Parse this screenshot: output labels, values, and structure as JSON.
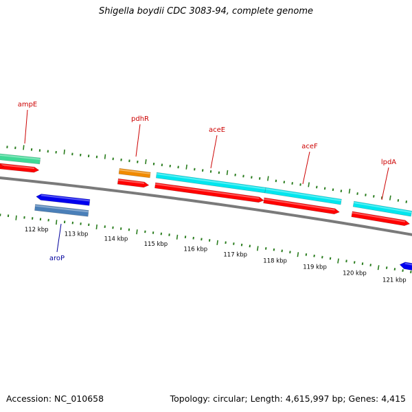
{
  "title": "Shigella boydii CDC 3083-94, complete genome",
  "footer": {
    "accession": "Accession: NC_010658",
    "summary": "Topology: circular; Length: 4,615,997 bp; Genes: 4,415"
  },
  "colors": {
    "backbone": "#7a7a7a",
    "tick": "#2a7d1e",
    "label_forward": "#cc0000",
    "label_reverse": "#00009c",
    "cds_forward": "#ff0000",
    "cds_reverse": "#0000ee",
    "ampE": "#3fd996",
    "aroP_cog": "#4a7fb8",
    "pdhR": "#f08a00",
    "aceE": "#00e6ee",
    "aceF": "#00e6ee",
    "lpdA": "#00e6ee"
  },
  "scale": {
    "labels": [
      "112 kbp",
      "113 kbp",
      "114 kbp",
      "115 kbp",
      "116 kbp",
      "117 kbp",
      "118 kbp",
      "119 kbp",
      "120 kbp",
      "121 kbp"
    ]
  },
  "genes": [
    {
      "name": "ampE",
      "strand": "forward",
      "class_color": "ampE"
    },
    {
      "name": "aroP",
      "strand": "reverse",
      "class_color": "aroP_cog"
    },
    {
      "name": "pdhR",
      "strand": "forward",
      "class_color": "pdhR"
    },
    {
      "name": "aceE",
      "strand": "forward",
      "class_color": "aceE"
    },
    {
      "name": "aceF",
      "strand": "forward",
      "class_color": "aceF"
    },
    {
      "name": "lpdA",
      "strand": "forward",
      "class_color": "lpdA"
    }
  ]
}
